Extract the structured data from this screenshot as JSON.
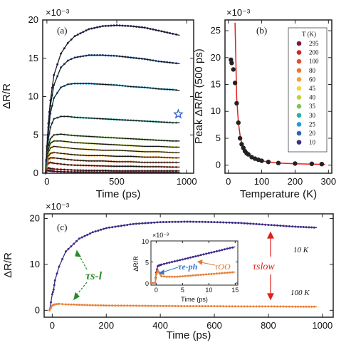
{
  "colors": {
    "fit_line": "#1a1a1a",
    "fit_red": "#e0201b",
    "t10": "#3f2c86",
    "t100": "#e8823a",
    "tau_sl_green": "#2a8a2a",
    "tau_eph_blue": "#2f78c8",
    "tau_oo_orange": "#e07a2a",
    "tau_slow_red": "#e0201b",
    "star": "#2f5fd0"
  },
  "chart_data": [
    {
      "id": "a",
      "type": "line",
      "panel_label": "(a)",
      "scale_label": "×10⁻³",
      "xlabel": "Time (ps)",
      "ylabel": "ΔR/R",
      "xlim": [
        -30,
        1050
      ],
      "ylim": [
        0,
        20
      ],
      "xticks": [
        0,
        500,
        1000
      ],
      "yticks": [
        0,
        5,
        10,
        15,
        20
      ],
      "x": [
        -10,
        0,
        10,
        25,
        50,
        100,
        150,
        200,
        300,
        400,
        500,
        600,
        700,
        800,
        900,
        950
      ],
      "series": [
        {
          "name": "10",
          "color": "#3f2c86",
          "values": [
            0,
            3.5,
            6.5,
            9.5,
            12.8,
            15.6,
            17.0,
            17.9,
            18.8,
            19.2,
            19.3,
            19.2,
            19.0,
            18.6,
            18.2,
            18.0
          ]
        },
        {
          "name": "20",
          "color": "#2b64b8",
          "values": [
            0,
            3.2,
            6.0,
            8.8,
            11.5,
            13.8,
            14.7,
            15.1,
            15.4,
            15.4,
            15.3,
            15.1,
            14.9,
            14.6,
            14.4,
            14.3
          ]
        },
        {
          "name": "25",
          "color": "#1d9fd8",
          "values": [
            0,
            2.8,
            5.3,
            7.8,
            9.8,
            11.2,
            11.6,
            11.7,
            11.7,
            11.6,
            11.5,
            11.3,
            11.2,
            11.0,
            10.9,
            10.8
          ]
        },
        {
          "name": "30",
          "color": "#22b3a0",
          "values": [
            0,
            2.4,
            4.4,
            6.0,
            7.1,
            7.4,
            7.4,
            7.3,
            7.2,
            7.1,
            7.0,
            6.9,
            6.8,
            6.7,
            6.6,
            6.6
          ]
        },
        {
          "name": "35",
          "color": "#7cc35a",
          "values": [
            0,
            2.0,
            3.5,
            4.5,
            5.0,
            5.1,
            5.0,
            4.9,
            4.8,
            4.7,
            4.6,
            4.5,
            4.4,
            4.3,
            4.2,
            4.2
          ]
        },
        {
          "name": "40",
          "color": "#c4cf3c",
          "values": [
            0,
            1.8,
            3.1,
            3.9,
            4.2,
            4.2,
            4.1,
            4.0,
            3.9,
            3.8,
            3.7,
            3.6,
            3.5,
            3.5,
            3.4,
            3.4
          ]
        },
        {
          "name": "45",
          "color": "#f3d34a",
          "values": [
            0,
            1.6,
            2.7,
            3.3,
            3.5,
            3.4,
            3.3,
            3.2,
            3.1,
            3.0,
            3.0,
            2.9,
            2.8,
            2.8,
            2.7,
            2.7
          ]
        },
        {
          "name": "60",
          "color": "#f3a13a",
          "values": [
            0,
            1.4,
            2.2,
            2.6,
            2.7,
            2.6,
            2.5,
            2.4,
            2.3,
            2.3,
            2.2,
            2.2,
            2.1,
            2.1,
            2.0,
            2.0
          ]
        },
        {
          "name": "80",
          "color": "#ea7a32",
          "values": [
            0,
            1.2,
            1.8,
            2.0,
            2.0,
            1.9,
            1.8,
            1.7,
            1.6,
            1.6,
            1.5,
            1.5,
            1.4,
            1.4,
            1.4,
            1.4
          ]
        },
        {
          "name": "100",
          "color": "#e0502c",
          "values": [
            0,
            1.0,
            1.3,
            1.4,
            1.3,
            1.2,
            1.1,
            1.05,
            1.0,
            0.95,
            0.9,
            0.9,
            0.85,
            0.85,
            0.8,
            0.8
          ]
        },
        {
          "name": "200",
          "color": "#c8282a",
          "values": [
            0,
            0.6,
            0.7,
            0.6,
            0.55,
            0.5,
            0.45,
            0.4,
            0.35,
            0.35,
            0.3,
            0.3,
            0.3,
            0.3,
            0.3,
            0.3
          ]
        },
        {
          "name": "295",
          "color": "#7a1a3c",
          "values": [
            0,
            0.4,
            0.35,
            0.3,
            0.25,
            0.2,
            0.18,
            0.16,
            0.15,
            0.15,
            0.14,
            0.14,
            0.13,
            0.13,
            0.13,
            0.13
          ]
        }
      ],
      "star_marker": {
        "x": 940,
        "y": 7.7
      }
    },
    {
      "id": "b",
      "type": "scatter",
      "panel_label": "(b)",
      "scale_label": "×10⁻³",
      "xlabel": "Temperature (K)",
      "ylabel": "Peak ΔR/R (500 ps)",
      "xlim": [
        -10,
        310
      ],
      "ylim": [
        -1.5,
        27
      ],
      "xticks": [
        0,
        100,
        200,
        300
      ],
      "yticks": [
        0,
        5,
        10,
        15,
        20,
        25
      ],
      "legend_title": "T (K)",
      "legend_placement": "right",
      "legend": [
        {
          "label": "295",
          "color": "#7a1a3c"
        },
        {
          "label": "200",
          "color": "#c8282a"
        },
        {
          "label": "100",
          "color": "#e0502c"
        },
        {
          "label": "80",
          "color": "#ea7a32"
        },
        {
          "label": "60",
          "color": "#f3a13a"
        },
        {
          "label": "45",
          "color": "#f3d34a"
        },
        {
          "label": "40",
          "color": "#c4cf3c"
        },
        {
          "label": "35",
          "color": "#7cc35a"
        },
        {
          "label": "30",
          "color": "#22b3a0"
        },
        {
          "label": "25",
          "color": "#1d9fd8"
        },
        {
          "label": "20",
          "color": "#2b64b8"
        },
        {
          "label": "10",
          "color": "#3f2c86"
        }
      ],
      "points_x": [
        8,
        10,
        15,
        20,
        25,
        30,
        35,
        40,
        45,
        50,
        55,
        60,
        70,
        80,
        90,
        100,
        120,
        150,
        200,
        250,
        280
      ],
      "points_y": [
        19.6,
        19.0,
        17.8,
        15.3,
        11.5,
        7.9,
        5.0,
        3.9,
        3.2,
        2.6,
        2.2,
        2.0,
        1.5,
        1.2,
        1.0,
        0.8,
        0.6,
        0.4,
        0.3,
        0.25,
        0.2
      ],
      "fit_x": [
        20,
        25,
        30,
        35,
        40,
        45,
        50,
        60,
        70,
        80,
        100,
        120,
        150,
        200,
        250,
        290
      ],
      "fit_y": [
        26.5,
        12.5,
        8.0,
        5.6,
        4.2,
        3.3,
        2.7,
        1.9,
        1.5,
        1.2,
        0.8,
        0.6,
        0.4,
        0.25,
        0.2,
        0.15
      ]
    },
    {
      "id": "c",
      "type": "line",
      "panel_label": "(c)",
      "scale_label": "×10⁻³",
      "xlabel": "Time (ps)",
      "ylabel": "ΔR/R",
      "xlim": [
        -30,
        1040
      ],
      "ylim": [
        -1.5,
        21
      ],
      "xticks": [
        0,
        200,
        400,
        600,
        800,
        1000
      ],
      "yticks": [
        0,
        10,
        20
      ],
      "x": [
        -10,
        0,
        5,
        10,
        25,
        50,
        100,
        150,
        200,
        300,
        400,
        500,
        600,
        700,
        800,
        900,
        980
      ],
      "series": [
        {
          "name": "10 K",
          "color": "#3f2c86",
          "values": [
            0,
            3.5,
            4.5,
            6.5,
            9.5,
            12.8,
            15.6,
            17.0,
            17.9,
            18.8,
            19.2,
            19.3,
            19.2,
            19.0,
            18.6,
            18.2,
            18.0
          ]
        },
        {
          "name": "100 K",
          "color": "#e8823a",
          "values": [
            0,
            1.0,
            1.2,
            1.3,
            1.4,
            1.3,
            1.2,
            1.1,
            1.05,
            1.0,
            0.95,
            0.9,
            0.9,
            0.85,
            0.85,
            0.8,
            0.8
          ]
        }
      ],
      "label_10K": "10 K",
      "label_100K": "100 K",
      "tau_sl": "τs-l",
      "tau_slow": "τslow",
      "inset": {
        "scale_label": "×10⁻³",
        "xlabel": "Time (ps)",
        "ylabel": "ΔR/R",
        "xlim": [
          -1,
          15.5
        ],
        "ylim": [
          -0.5,
          10
        ],
        "xticks": [
          0,
          5,
          10,
          15
        ],
        "yticks": [
          0,
          5,
          10
        ],
        "x": [
          -1,
          -0.2,
          0,
          0.3,
          0.6,
          1,
          2,
          3,
          4,
          5,
          6,
          7,
          8,
          9,
          10,
          11,
          12,
          13,
          14,
          15
        ],
        "series": [
          {
            "name": "10 K",
            "color": "#3f2c86",
            "values": [
              0,
              0,
              2.5,
              4.0,
              4.2,
              4.4,
              4.7,
              5.0,
              5.3,
              5.6,
              5.9,
              6.2,
              6.5,
              6.8,
              7.1,
              7.4,
              7.7,
              8.0,
              8.3,
              8.6
            ]
          },
          {
            "name": "100 K",
            "color": "#e8823a",
            "values": [
              0,
              0,
              2.0,
              3.0,
              2.4,
              1.6,
              1.5,
              1.5,
              1.5,
              1.6,
              1.7,
              1.8,
              1.9,
              2.0,
              2.1,
              2.2,
              2.3,
              2.4,
              2.5,
              2.6
            ]
          }
        ],
        "tau_eph": "τe-ph",
        "tau_oo": "τOO"
      }
    }
  ]
}
